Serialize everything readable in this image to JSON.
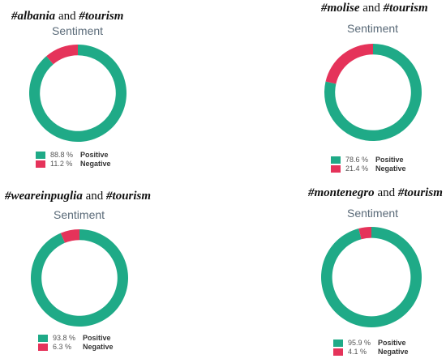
{
  "colors": {
    "positive": "#1faa87",
    "negative": "#e5335a"
  },
  "chart_data": [
    {
      "type": "pie",
      "title_tag1": "#albania",
      "title_and": " and ",
      "title_tag2": "#tourism",
      "subtitle": "Sentiment",
      "categories": [
        "Positive",
        "Negative"
      ],
      "values": [
        88.8,
        11.2
      ],
      "value_labels": [
        "88.8 %",
        "11.2 %"
      ]
    },
    {
      "type": "pie",
      "title_tag1": "#molise",
      "title_and": " and ",
      "title_tag2": "#tourism",
      "subtitle": "Sentiment",
      "categories": [
        "Positive",
        "Negative"
      ],
      "values": [
        78.6,
        21.4
      ],
      "value_labels": [
        "78.6 %",
        "21.4 %"
      ]
    },
    {
      "type": "pie",
      "title_tag1": "#weareinpuglia",
      "title_and": " and ",
      "title_tag2": "#tourism",
      "subtitle": "Sentiment",
      "categories": [
        "Positive",
        "Negative"
      ],
      "values": [
        93.8,
        6.3
      ],
      "value_labels": [
        "93.8 %",
        "6.3 %"
      ]
    },
    {
      "type": "pie",
      "title_tag1": "#montenegro",
      "title_and": " and ",
      "title_tag2": "#tourism",
      "subtitle": "Sentiment",
      "categories": [
        "Positive",
        "Negative"
      ],
      "values": [
        95.9,
        4.1
      ],
      "value_labels": [
        "95.9 %",
        "4.1 %"
      ]
    }
  ]
}
